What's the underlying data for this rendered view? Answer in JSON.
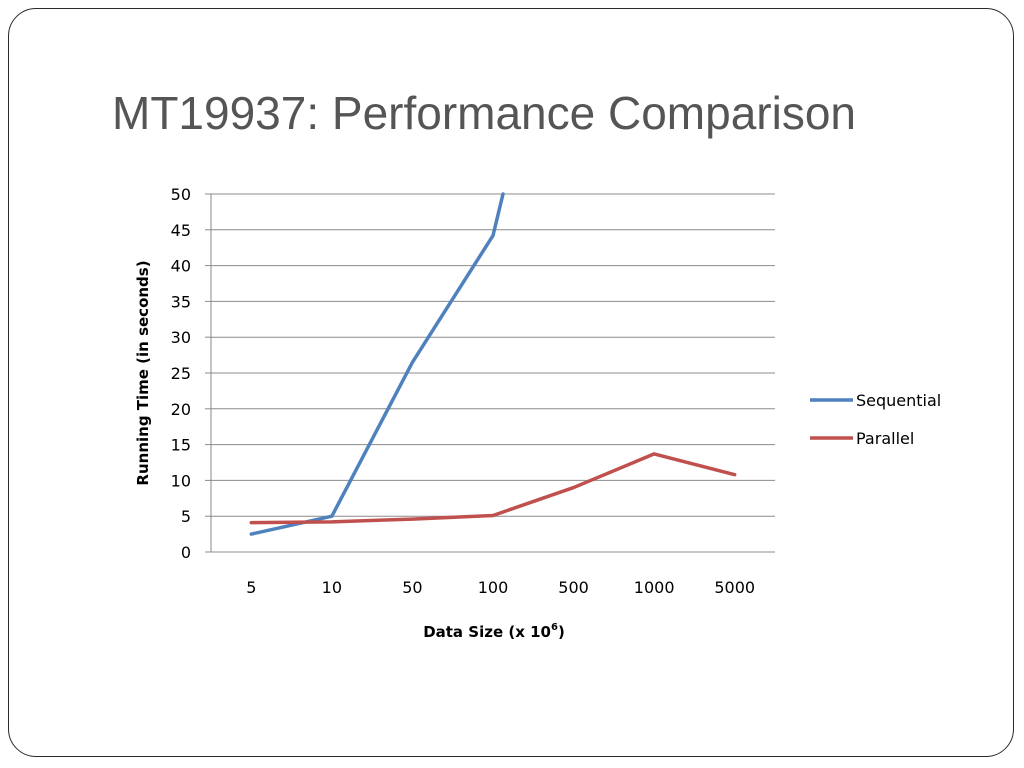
{
  "slide": {
    "title": "MT19937: Performance Comparison"
  },
  "chart_data": {
    "type": "line",
    "categories": [
      "5",
      "10",
      "50",
      "100",
      "500",
      "1000",
      "5000"
    ],
    "xlabel": "Data Size (x 10",
    "xlabel_superscript": "6",
    "xlabel_suffix": ")",
    "ylabel": "Running Time (in seconds)",
    "ylim": [
      0,
      50
    ],
    "yticks": [
      0,
      5,
      10,
      15,
      20,
      25,
      30,
      35,
      40,
      45,
      50
    ],
    "grid": true,
    "legend_position": "right",
    "series": [
      {
        "name": "Sequential",
        "color": "#4f81bd",
        "values": [
          2.5,
          5,
          26.5,
          44.2,
          null,
          null,
          null
        ],
        "continues_above": true
      },
      {
        "name": "Parallel",
        "color": "#c0504d",
        "values": [
          4.1,
          4.2,
          4.6,
          5.1,
          9.0,
          13.7,
          10.8
        ]
      }
    ]
  }
}
